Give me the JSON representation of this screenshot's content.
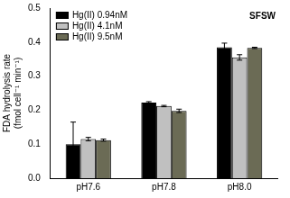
{
  "chart_data": {
    "type": "bar",
    "y_label": [
      "FDA hydrolysis rate",
      "(fmol cell⁻¹ min⁻¹)"
    ],
    "annotations": [
      {
        "text": "SFSW"
      }
    ],
    "categories": [
      "pH7.6",
      "pH7.8",
      "pH8.0"
    ],
    "series": [
      {
        "name": "Hg(II) 0.94nM",
        "color": "#000000",
        "values": [
          0.1,
          0.222,
          0.385
        ],
        "errors": [
          0.065,
          0.003,
          0.012
        ]
      },
      {
        "name": "Hg(II) 4.1nM",
        "color": "#c0c0c0",
        "values": [
          0.115,
          0.212,
          0.355
        ],
        "errors": [
          0.005,
          0.002,
          0.008
        ]
      },
      {
        "name": "Hg(II) 9.5nM",
        "color": "#6b6b55",
        "values": [
          0.112,
          0.198,
          0.383
        ],
        "errors": [
          0.003,
          0.005,
          0.002
        ]
      }
    ],
    "ylim": [
      0,
      0.5
    ],
    "yticks": [
      {
        "value": 0,
        "label": "0.0"
      },
      {
        "value": 0.1,
        "label": "0.1"
      },
      {
        "value": 0.2,
        "label": "0.2"
      },
      {
        "value": 0.3,
        "label": "0.3"
      },
      {
        "value": 0.4,
        "label": "0.4"
      },
      {
        "value": 0.5,
        "label": "0.5"
      }
    ],
    "grid": false,
    "legend": "upper left"
  }
}
